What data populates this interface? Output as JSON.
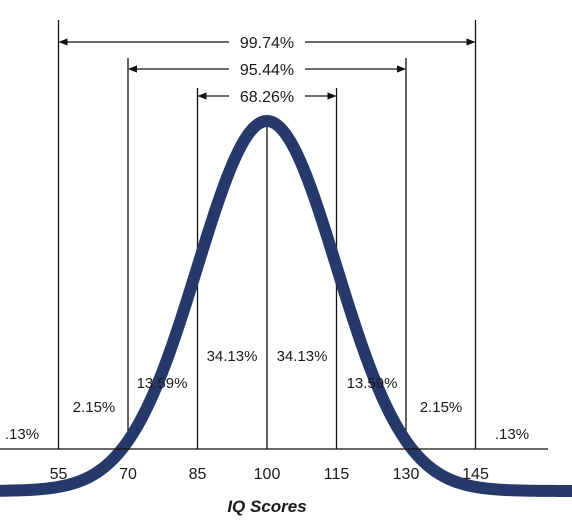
{
  "chart_data": {
    "type": "line",
    "distribution": "normal",
    "mean": 100,
    "sd": 15,
    "xlabel": "IQ Scores",
    "ticks": [
      55,
      70,
      85,
      100,
      115,
      130,
      145
    ],
    "tick_labels": [
      "55",
      "70",
      "85",
      "100",
      "115",
      "130",
      "145"
    ],
    "xlim": [
      10,
      190
    ],
    "ylim": [
      0,
      1.1
    ],
    "curve_color": "#253a6b",
    "regions": [
      {
        "from": null,
        "to": 55,
        "label": ".13%"
      },
      {
        "from": 55,
        "to": 70,
        "label": "2.15%"
      },
      {
        "from": 70,
        "to": 85,
        "label": "13.59%"
      },
      {
        "from": 85,
        "to": 100,
        "label": "34.13%"
      },
      {
        "from": 100,
        "to": 115,
        "label": "34.13%"
      },
      {
        "from": 115,
        "to": 130,
        "label": "13.59%"
      },
      {
        "from": 130,
        "to": 145,
        "label": "2.15%"
      },
      {
        "from": 145,
        "to": null,
        "label": ".13%"
      }
    ],
    "brackets": [
      {
        "from": 55,
        "to": 145,
        "label": "99.74%"
      },
      {
        "from": 70,
        "to": 130,
        "label": "95.44%"
      },
      {
        "from": 85,
        "to": 115,
        "label": "68.26%"
      }
    ]
  }
}
